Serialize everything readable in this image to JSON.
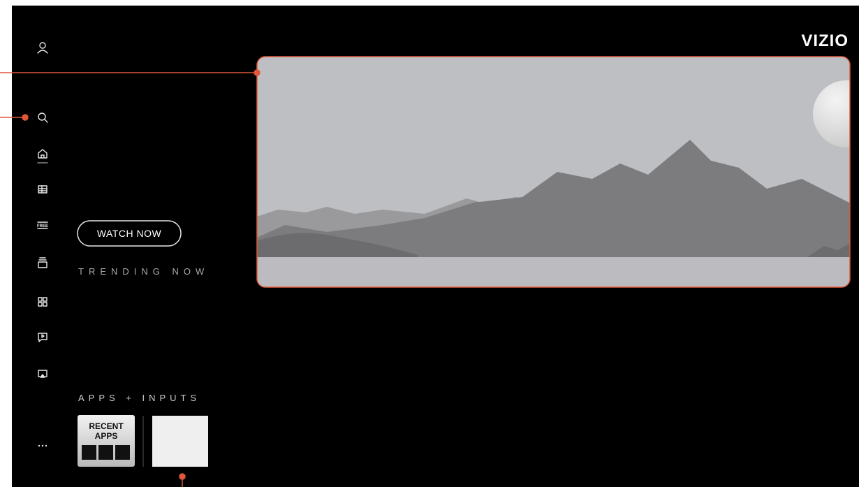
{
  "header": {
    "logo": "VIZIO"
  },
  "sidebar": {
    "free_label": "FREE"
  },
  "hero": {
    "button": "WATCH NOW",
    "section": "TRENDING NOW"
  },
  "apps": {
    "section": "APPS + INPUTS",
    "recent": [
      "RECENT",
      "APPS"
    ]
  }
}
